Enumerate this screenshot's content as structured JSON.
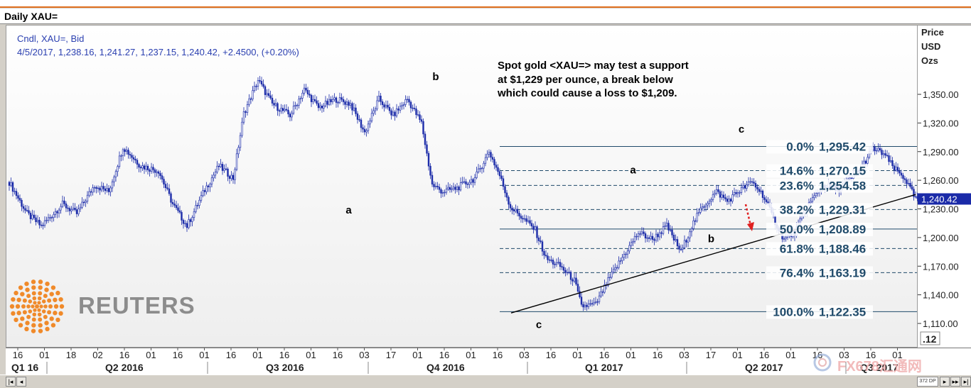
{
  "window": {
    "title": "Daily XAU="
  },
  "legend": {
    "line1": "Cndl, XAU=, Bid",
    "line2": "4/5/2017, 1,238.16, 1,241.27, 1,237.15, 1,240.42, +2.4500, (+0.20%)"
  },
  "note": {
    "line1": "Spot gold <XAU=> may test a support",
    "line2": "at $1,229 per ounce, a break below",
    "line3": "which could cause a loss to $1,209."
  },
  "logo": {
    "word": "REUTERS"
  },
  "watermark": {
    "text": "FX678汇通网"
  },
  "scrollbar": {
    "thumb_label": "372 DP"
  },
  "colors": {
    "candle": "#1a2aa8",
    "fib_line": "#1f4a6a",
    "fib_text": "#1f4a6a",
    "trendline": "#000000",
    "arrow": "#e02020",
    "price_tag": "#1a2aa8"
  },
  "chart_data": {
    "type": "candlestick",
    "y_axis": {
      "title_lines": [
        "Price",
        "USD",
        "Ozs"
      ],
      "ticks": [
        {
          "v": 1350,
          "label": "1,350.00"
        },
        {
          "v": 1320,
          "label": "1,320.00"
        },
        {
          "v": 1290,
          "label": "1,290.00"
        },
        {
          "v": 1260,
          "label": "1,260.00"
        },
        {
          "v": 1230,
          "label": "1,230.00"
        },
        {
          "v": 1200,
          "label": "1,200.00"
        },
        {
          "v": 1170,
          "label": "1,170.00"
        },
        {
          "v": 1140,
          "label": "1,140.00"
        },
        {
          "v": 1110,
          "label": "1,110.00"
        }
      ],
      "last_price": {
        "v": 1240.42,
        "label": "1,240.42"
      },
      "corner_label": ".12"
    },
    "x_axis": {
      "day_ticks": [
        "16",
        "01",
        "18",
        "02",
        "16",
        "01",
        "16",
        "01",
        "16",
        "01",
        "16",
        "01",
        "16",
        "03",
        "17",
        "01",
        "16",
        "01",
        "16",
        "03",
        "16",
        "01",
        "16",
        "01",
        "16",
        "03",
        "17",
        "01",
        "16",
        "01",
        "16",
        "03",
        "16",
        "01"
      ],
      "period_labels": [
        "Q1 16",
        "Q2 2016",
        "Q3 2016",
        "Q4 2016",
        "Q1 2017",
        "Q2 2017",
        "Q3 2017"
      ]
    },
    "path": [
      [
        0,
        1258
      ],
      [
        10,
        1225
      ],
      [
        18,
        1212
      ],
      [
        30,
        1235
      ],
      [
        38,
        1225
      ],
      [
        48,
        1255
      ],
      [
        56,
        1248
      ],
      [
        64,
        1295
      ],
      [
        74,
        1275
      ],
      [
        84,
        1270
      ],
      [
        92,
        1235
      ],
      [
        100,
        1212
      ],
      [
        110,
        1250
      ],
      [
        118,
        1275
      ],
      [
        126,
        1262
      ],
      [
        132,
        1330
      ],
      [
        140,
        1365
      ],
      [
        148,
        1340
      ],
      [
        158,
        1328
      ],
      [
        166,
        1355
      ],
      [
        174,
        1336
      ],
      [
        184,
        1345
      ],
      [
        192,
        1340
      ],
      [
        200,
        1310
      ],
      [
        208,
        1345
      ],
      [
        216,
        1328
      ],
      [
        224,
        1345
      ],
      [
        232,
        1320
      ],
      [
        238,
        1255
      ],
      [
        244,
        1248
      ],
      [
        252,
        1252
      ],
      [
        262,
        1262
      ],
      [
        270,
        1290
      ],
      [
        276,
        1265
      ],
      [
        282,
        1232
      ],
      [
        288,
        1222
      ],
      [
        296,
        1208
      ],
      [
        302,
        1178
      ],
      [
        310,
        1170
      ],
      [
        318,
        1155
      ],
      [
        322,
        1128
      ],
      [
        330,
        1130
      ],
      [
        338,
        1158
      ],
      [
        346,
        1182
      ],
      [
        354,
        1205
      ],
      [
        362,
        1198
      ],
      [
        370,
        1212
      ],
      [
        378,
        1185
      ],
      [
        384,
        1212
      ],
      [
        390,
        1232
      ],
      [
        398,
        1248
      ],
      [
        404,
        1238
      ],
      [
        410,
        1248
      ],
      [
        418,
        1258
      ],
      [
        424,
        1245
      ],
      [
        430,
        1220
      ],
      [
        436,
        1198
      ],
      [
        442,
        1205
      ],
      [
        450,
        1235
      ],
      [
        458,
        1255
      ],
      [
        466,
        1250
      ],
      [
        474,
        1262
      ],
      [
        480,
        1275
      ],
      [
        486,
        1293
      ],
      [
        492,
        1288
      ],
      [
        498,
        1272
      ],
      [
        504,
        1262
      ],
      [
        510,
        1240
      ]
    ],
    "trendline": [
      [
        0,
        1121
      ],
      [
        510,
        1245
      ]
    ],
    "fib_levels": [
      {
        "pct": "0.0%",
        "price": "1,295.42",
        "v": 1295.42,
        "style": "solid"
      },
      {
        "pct": "14.6%",
        "price": "1,270.15",
        "v": 1270.15,
        "style": "dashed"
      },
      {
        "pct": "23.6%",
        "price": "1,254.58",
        "v": 1254.58,
        "style": "dashed"
      },
      {
        "pct": "38.2%",
        "price": "1,229.31",
        "v": 1229.31,
        "style": "dashed"
      },
      {
        "pct": "50.0%",
        "price": "1,208.89",
        "v": 1208.89,
        "style": "solid"
      },
      {
        "pct": "61.8%",
        "price": "1,188.46",
        "v": 1188.46,
        "style": "dashed"
      },
      {
        "pct": "76.4%",
        "price": "1,163.19",
        "v": 1163.19,
        "style": "dashed"
      },
      {
        "pct": "100.0%",
        "price": "1,122.35",
        "v": 1122.35,
        "style": "solid"
      }
    ],
    "wave_labels": [
      {
        "text": "b",
        "i": 240,
        "v": 1365
      },
      {
        "text": "a",
        "i": 191,
        "v": 1225
      },
      {
        "text": "c",
        "i": 262,
        "v": 1105
      },
      {
        "text": "a",
        "i": 351,
        "v": 1267
      },
      {
        "text": "b",
        "i": 395,
        "v": 1195
      },
      {
        "text": "c",
        "i": 412,
        "v": 1310
      }
    ]
  }
}
